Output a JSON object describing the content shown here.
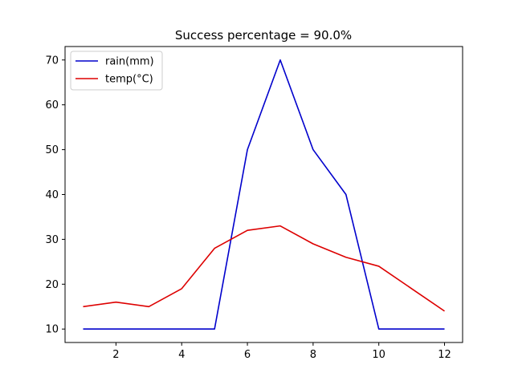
{
  "chart_data": {
    "type": "line",
    "title": "Success percentage = 90.0%",
    "xlabel": "",
    "ylabel": "",
    "x": [
      1,
      2,
      3,
      4,
      5,
      6,
      7,
      8,
      9,
      10,
      11,
      12
    ],
    "series": [
      {
        "name": "rain(mm)",
        "color": "#0000cc",
        "values": [
          10,
          10,
          10,
          10,
          10,
          50,
          70,
          50,
          40,
          10,
          10,
          10
        ]
      },
      {
        "name": "temp(°C)",
        "color": "#dd0000",
        "values": [
          15,
          16,
          15,
          19,
          28,
          32,
          33,
          29,
          26,
          24,
          19,
          14
        ]
      }
    ],
    "xlim": [
      0.45,
      12.55
    ],
    "ylim": [
      7,
      73
    ],
    "xticks": [
      2,
      4,
      6,
      8,
      10,
      12
    ],
    "xtick_labels": [
      "2",
      "4",
      "6",
      "8",
      "10",
      "12"
    ],
    "yticks": [
      10,
      20,
      30,
      40,
      50,
      60,
      70
    ],
    "ytick_labels": [
      "10",
      "20",
      "30",
      "40",
      "50",
      "60",
      "70"
    ],
    "grid": false,
    "legend_position": "top-left"
  }
}
